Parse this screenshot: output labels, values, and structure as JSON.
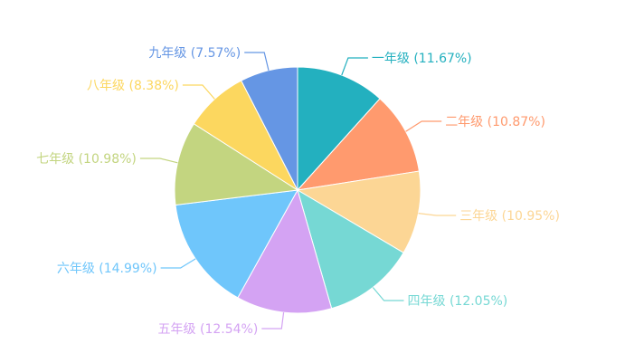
{
  "chart_data": {
    "type": "pie",
    "slices": [
      {
        "name": "一年级",
        "value": 11.67,
        "label": "一年级 (11.67%)",
        "color": "#23b0bf"
      },
      {
        "name": "二年级",
        "value": 10.87,
        "label": "二年级 (10.87%)",
        "color": "#ff9a6e"
      },
      {
        "name": "三年级",
        "value": 10.95,
        "label": "三年级 (10.95%)",
        "color": "#fcd695"
      },
      {
        "name": "四年级",
        "value": 12.05,
        "label": "四年级 (12.05%)",
        "color": "#76d8d4"
      },
      {
        "name": "五年级",
        "value": 12.54,
        "label": "五年级 (12.54%)",
        "color": "#d4a3f3"
      },
      {
        "name": "六年级",
        "value": 14.99,
        "label": "六年级 (14.99%)",
        "color": "#6fc6fb"
      },
      {
        "name": "七年级",
        "value": 10.98,
        "label": "七年级 (10.98%)",
        "color": "#c3d580"
      },
      {
        "name": "八年级",
        "value": 8.38,
        "label": "八年级 (8.38%)",
        "color": "#fcd75f"
      },
      {
        "name": "九年级",
        "value": 7.57,
        "label": "九年级 (7.57%)",
        "color": "#6596e4"
      }
    ]
  }
}
